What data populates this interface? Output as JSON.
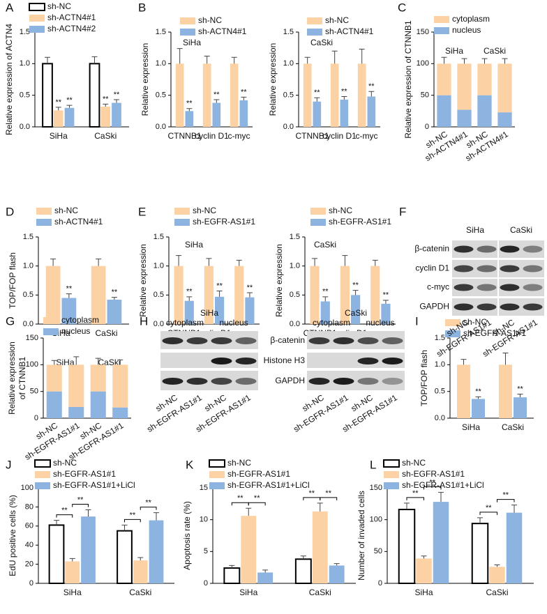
{
  "chart_data": [
    {
      "type": "bar",
      "panel": "A",
      "ylabel": "Relative expression of ACTN4",
      "categories": [
        "SiHa",
        "CaSki"
      ],
      "series": [
        {
          "name": "sh-NC",
          "color": "#ffffff",
          "edgecolor": "#000000",
          "values": [
            1.0,
            1.0
          ],
          "errors": [
            0.1,
            0.11
          ]
        },
        {
          "name": "sh-ACTN4#1",
          "color": "#fcd2a5",
          "values": [
            0.26,
            0.32
          ],
          "errors": [
            0.05,
            0.04
          ]
        },
        {
          "name": "sh-ACTN4#2",
          "color": "#8db3e0",
          "values": [
            0.3,
            0.38
          ],
          "errors": [
            0.04,
            0.05
          ]
        }
      ],
      "ylim": [
        0,
        1.5
      ],
      "yticks": [
        {
          "value": 0,
          "label": "0.0"
        },
        0.5,
        {
          "value": 1,
          "label": "1.0"
        },
        1.5
      ],
      "annotation": "**",
      "significance": "bars"
    },
    {
      "type": "bar",
      "panel": "B",
      "subtitle": "SiHa",
      "ylabel": "Relative expression",
      "categories": [
        "CTNNB1",
        "cyclin D1",
        "c-myc"
      ],
      "series": [
        {
          "name": "sh-NC",
          "color": "#fcd2a5",
          "values": [
            1.0,
            1.0,
            1.0
          ],
          "errors": [
            0.24,
            0.12,
            0.1
          ]
        },
        {
          "name": "sh-ACTN4#1",
          "color": "#8db3e0",
          "values": [
            0.25,
            0.38,
            0.42
          ],
          "errors": [
            0.04,
            0.05,
            0.05
          ]
        }
      ],
      "ylim": [
        0,
        1.5
      ],
      "yticks": [
        {
          "value": 0,
          "label": "0.0"
        },
        0.5,
        {
          "value": 1,
          "label": "1.0"
        },
        1.5
      ],
      "annotation": "**",
      "significance": "bars"
    },
    {
      "type": "bar",
      "subtitle": "CaSki",
      "ylabel": "Relative expression",
      "categories": [
        "CTNNB1",
        "cyclin D1",
        "c-myc"
      ],
      "series": [
        {
          "name": "sh-NC",
          "color": "#fcd2a5",
          "values": [
            1.0,
            1.0,
            1.0
          ],
          "errors": [
            0.1,
            0.2,
            0.23
          ]
        },
        {
          "name": "sh-ACTN4#1",
          "color": "#8db3e0",
          "values": [
            0.4,
            0.43,
            0.48
          ],
          "errors": [
            0.06,
            0.05,
            0.08
          ]
        }
      ],
      "ylim": [
        0,
        1.5
      ],
      "yticks": [
        {
          "value": 0,
          "label": "0.0"
        },
        0.5,
        {
          "value": 1,
          "label": "1.0"
        },
        1.5
      ],
      "annotation": "**",
      "significance": "bars"
    },
    {
      "type": "stacked",
      "panel": "C",
      "ylabel": "Relative expression of CTNNB1",
      "groups": [
        "SiHa",
        "CaSki"
      ],
      "categories": [
        "sh-NC",
        "sh-ACTN4#1",
        "sh-NC",
        "sh-ACTN4#1"
      ],
      "series": [
        {
          "name": "cytoplasm",
          "color": "#fcd2a5",
          "values": [
            50,
            73,
            50,
            77
          ],
          "errors": [
            10,
            8,
            8,
            8
          ]
        },
        {
          "name": "nucleus",
          "color": "#8db3e0",
          "values": [
            50,
            27,
            50,
            23
          ],
          "errors": [
            5,
            3,
            6,
            2
          ]
        }
      ],
      "ylim": [
        0,
        150
      ],
      "yticks": [
        0,
        50,
        100,
        150
      ]
    },
    {
      "type": "bar",
      "panel": "D",
      "ylabel": "TOP/FOP flash",
      "categories": [
        "SiHa",
        "CaSki"
      ],
      "series": [
        {
          "name": "sh-NC",
          "color": "#fcd2a5",
          "values": [
            1.0,
            1.0
          ],
          "errors": [
            0.12,
            0.12
          ]
        },
        {
          "name": "sh-ACTN4#1",
          "color": "#8db3e0",
          "values": [
            0.45,
            0.42
          ],
          "errors": [
            0.07,
            0.04
          ]
        }
      ],
      "ylim": [
        0,
        1.5
      ],
      "yticks": [
        {
          "value": 0,
          "label": "0.0"
        },
        0.5,
        {
          "value": 1,
          "label": "1.0"
        },
        1.5
      ],
      "annotation": "**",
      "significance": "bars"
    },
    {
      "type": "bar",
      "panel": "E",
      "subtitle": "SiHa",
      "ylabel": "Relative expression",
      "categories": [
        "CTNNB1",
        "cyclin D1",
        "c-myc"
      ],
      "series": [
        {
          "name": "sh-NC",
          "color": "#fcd2a5",
          "values": [
            1.0,
            1.0,
            1.0
          ],
          "errors": [
            0.18,
            0.13,
            0.1
          ]
        },
        {
          "name": "sh-EGFR-AS1#1",
          "color": "#8db3e0",
          "values": [
            0.4,
            0.47,
            0.46
          ],
          "errors": [
            0.07,
            0.1,
            0.08
          ]
        }
      ],
      "ylim": [
        0,
        1.5
      ],
      "yticks": [
        {
          "value": 0,
          "label": "0.0"
        },
        0.5,
        {
          "value": 1,
          "label": "1.0"
        },
        1.5
      ],
      "annotation": "**",
      "significance": "bars"
    },
    {
      "type": "bar",
      "subtitle": "CaSki",
      "ylabel": "Relative expression",
      "categories": [
        "CTNNB1",
        "cyclin D1",
        "c-myc"
      ],
      "series": [
        {
          "name": "sh-NC",
          "color": "#fcd2a5",
          "values": [
            1.0,
            1.0,
            1.0
          ],
          "errors": [
            0.13,
            0.18,
            0.1
          ]
        },
        {
          "name": "sh-EGFR-AS1#1",
          "color": "#8db3e0",
          "values": [
            0.39,
            0.5,
            0.35
          ],
          "errors": [
            0.08,
            0.08,
            0.06
          ]
        }
      ],
      "ylim": [
        0,
        1.5
      ],
      "yticks": [
        {
          "value": 0,
          "label": "0.0"
        },
        0.5,
        {
          "value": 1,
          "label": "1.0"
        },
        1.5
      ],
      "annotation": "**",
      "significance": "bars"
    },
    {
      "type": "stacked",
      "panel": "G",
      "ylabel": [
        "Relative expression",
        "of CTNNB1"
      ],
      "groups": [
        "SiHa",
        "CaSki"
      ],
      "categories": [
        "sh-NC",
        "sh-EGFR-AS1#1",
        "sh-NC",
        "sh-EGFR-AS1#1"
      ],
      "series": [
        {
          "name": "cytoplasm",
          "color": "#fcd2a5",
          "values": [
            50,
            79,
            50,
            80
          ],
          "errors": [
            8,
            15,
            12,
            9
          ]
        },
        {
          "name": "nucleus",
          "color": "#8db3e0",
          "values": [
            50,
            21,
            50,
            20
          ],
          "errors": [
            6,
            3,
            5,
            2
          ]
        }
      ],
      "ylim": [
        0,
        150
      ],
      "yticks": [
        0,
        50,
        100,
        150
      ]
    },
    {
      "type": "bar",
      "panel": "I",
      "ylabel": "TOP/FOP flash",
      "categories": [
        "SiHa",
        "CaSki"
      ],
      "series": [
        {
          "name": "sh-NC",
          "color": "#fcd2a5",
          "values": [
            1.0,
            1.0
          ],
          "errors": [
            0.1,
            0.22
          ]
        },
        {
          "name": "sh-EGFR-AS1#1",
          "color": "#8db3e0",
          "values": [
            0.36,
            0.39
          ],
          "errors": [
            0.04,
            0.06
          ]
        }
      ],
      "ylim": [
        0,
        1.5
      ],
      "yticks": [
        {
          "value": 0,
          "label": "0.0"
        },
        0.5,
        {
          "value": 1,
          "label": "1.0"
        },
        1.5
      ],
      "annotation": "**",
      "significance": "bars"
    },
    {
      "type": "bar",
      "panel": "J",
      "ylabel": "EdU positive cells (%)",
      "categories": [
        "SiHa",
        "CaSki"
      ],
      "series": [
        {
          "name": "sh-NC",
          "color": "#ffffff",
          "edgecolor": "#000000",
          "values": [
            61,
            55
          ],
          "errors": [
            5,
            6
          ]
        },
        {
          "name": "sh-EGFR-AS1#1",
          "color": "#fcd2a5",
          "values": [
            23,
            24
          ],
          "errors": [
            3,
            3
          ]
        },
        {
          "name": "sh-EGFR-AS1#1+LiCl",
          "color": "#8db3e0",
          "values": [
            70,
            66
          ],
          "errors": [
            7,
            8
          ]
        }
      ],
      "ylim": [
        0,
        100
      ],
      "yticks": [
        0,
        20,
        40,
        60,
        80,
        100
      ],
      "annotation": "**",
      "significance": "brackets"
    },
    {
      "type": "bar",
      "panel": "K",
      "ylabel": "Apoptosis rate (%)",
      "categories": [
        "SiHa",
        "CaSki"
      ],
      "series": [
        {
          "name": "sh-NC",
          "color": "#ffffff",
          "edgecolor": "#000000",
          "values": [
            2.4,
            3.8
          ],
          "errors": [
            0.4,
            0.5
          ]
        },
        {
          "name": "sh-EGFR-AS1#1",
          "color": "#fcd2a5",
          "values": [
            10.6,
            11.3
          ],
          "errors": [
            1.2,
            1.3
          ]
        },
        {
          "name": "sh-EGFR-AS1#1+LiCl",
          "color": "#8db3e0",
          "values": [
            1.7,
            2.8
          ],
          "errors": [
            0.4,
            0.3
          ]
        }
      ],
      "ylim": [
        0,
        15
      ],
      "yticks": [
        0,
        5,
        10,
        15
      ],
      "annotation": "**",
      "significance": "brackets"
    },
    {
      "type": "bar",
      "panel": "L",
      "ylabel": "Number of invaded cells",
      "categories": [
        "SiHa",
        "CaSki"
      ],
      "series": [
        {
          "name": "sh-NC",
          "color": "#ffffff",
          "edgecolor": "#000000",
          "values": [
            116,
            94
          ],
          "errors": [
            10,
            9
          ]
        },
        {
          "name": "sh-EGFR-AS1#1",
          "color": "#fcd2a5",
          "values": [
            39,
            26
          ],
          "errors": [
            4,
            3
          ]
        },
        {
          "name": "sh-EGFR-AS1#1+LiCl",
          "color": "#8db3e0",
          "values": [
            128,
            111
          ],
          "errors": [
            15,
            12
          ]
        }
      ],
      "ylim": [
        0,
        150
      ],
      "yticks": [
        0,
        50,
        100,
        150
      ],
      "annotation": "**",
      "significance": "brackets"
    }
  ],
  "blots": [
    {
      "panel": "F",
      "groups": [
        "SiHa",
        "CaSki"
      ],
      "rows": [
        "β-catenin",
        "cyclin D1",
        "c-myc",
        "GAPDH"
      ],
      "lanes": [
        "sh-NC",
        "sh-EGFR-AS1#1",
        "sh-NC",
        "sh-EGFR-AS1#1"
      ]
    },
    {
      "panel": "H",
      "groups": [
        "SiHa",
        "CaSki"
      ],
      "fractions": [
        "cytoplasm",
        "nucleus",
        "cytoplasm",
        "nucleus"
      ],
      "rows": [
        "β-catenin",
        "Histone H3",
        "GAPDH"
      ],
      "lanes": [
        "sh-NC",
        "sh-EGFR-AS1#1",
        "sh-NC",
        "sh-EGFR-AS1#1",
        "sh-NC",
        "sh-EGFR-AS1#1",
        "sh-NC",
        "sh-EGFR-AS1#1"
      ]
    }
  ]
}
